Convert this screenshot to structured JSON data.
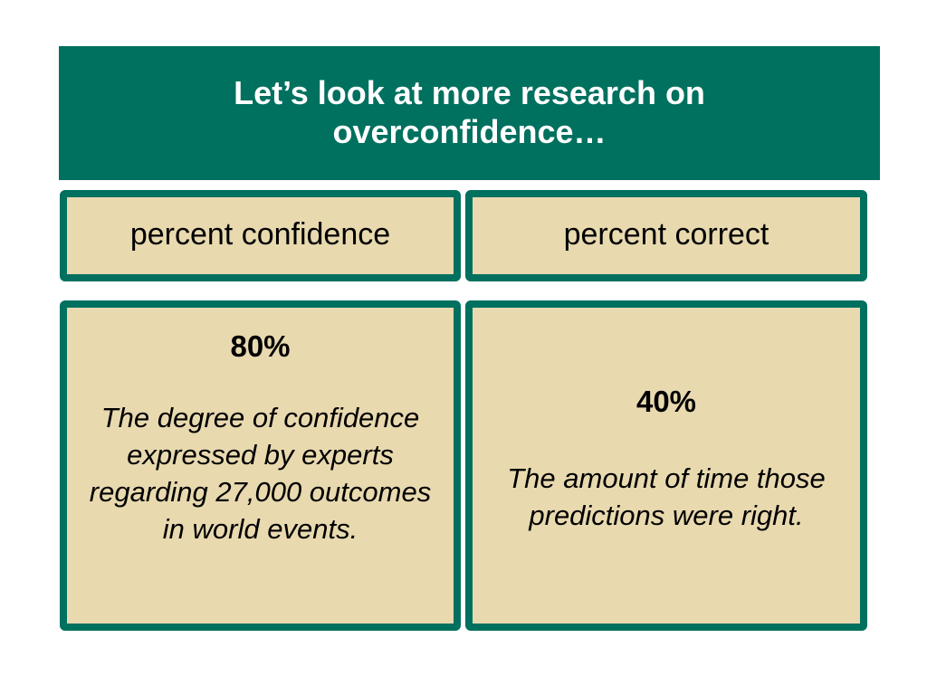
{
  "slide": {
    "title": "Let’s look at more research on overconfidence…",
    "headers": {
      "left": "percent confidence",
      "right": "percent correct"
    },
    "left_box": {
      "percent": "80%",
      "description": "The degree of confidence expressed by experts regarding 27,000 outcomes in world events."
    },
    "right_box": {
      "percent": "40%",
      "description": "The amount of time those predictions were right."
    },
    "colors": {
      "accent": "#00705f",
      "box_fill": "#e8d9af",
      "title_text": "#ffffff"
    }
  }
}
